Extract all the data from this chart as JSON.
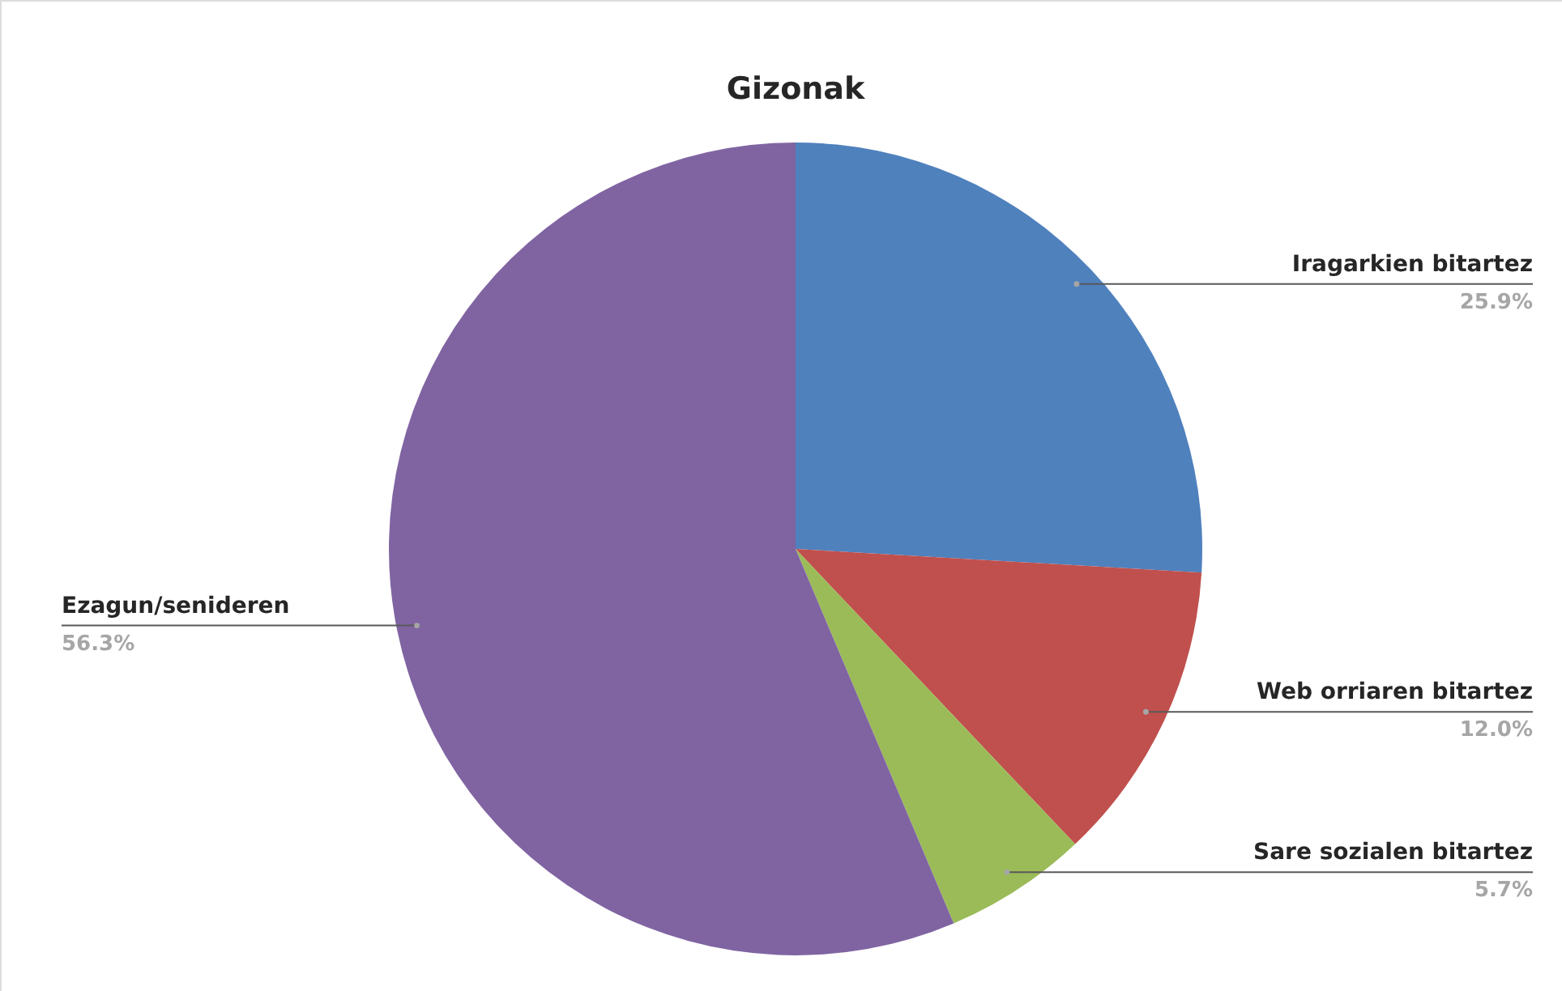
{
  "chart_data": {
    "type": "pie",
    "title": "Gizonak",
    "categories": [
      "Iragarkien bitartez",
      "Web orriaren bitartez",
      "Sare sozialen bitartez",
      "Ezagun/senideren"
    ],
    "values": [
      25.9,
      12.0,
      5.7,
      56.3
    ],
    "colors": [
      "#4f81bd",
      "#c0504d",
      "#9bbb59",
      "#8064a2"
    ],
    "value_labels": [
      "25.9%",
      "12.0%",
      "5.7%",
      "56.3%"
    ]
  }
}
